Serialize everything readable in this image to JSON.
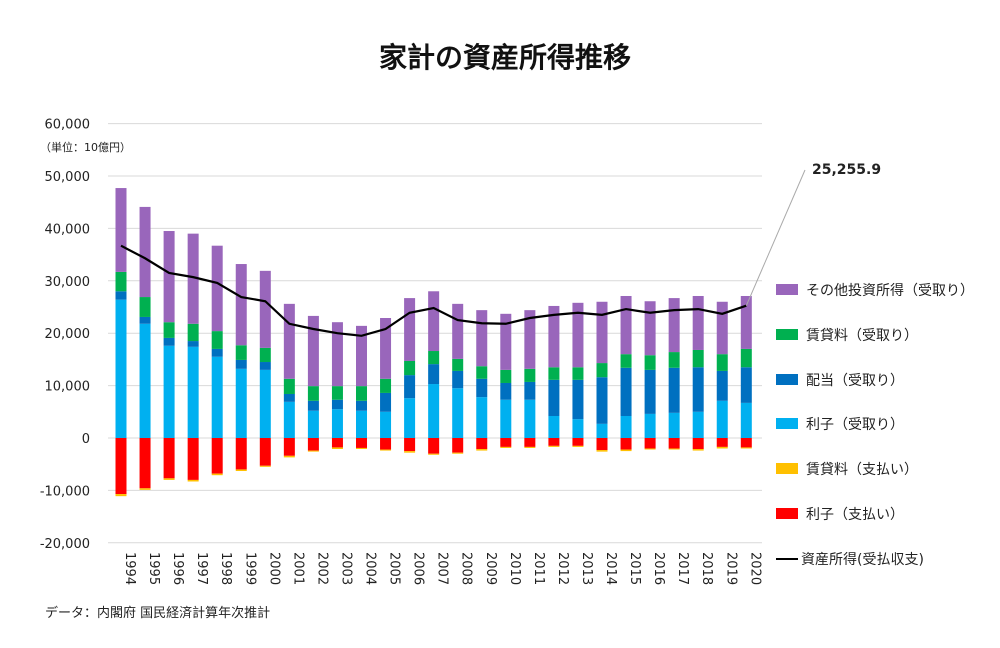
{
  "chart_data": {
    "type": "bar",
    "stacked": true,
    "title": "家計の資産所得推移",
    "unit_note": "（単位：10億円）",
    "source": "データ：内閣府 国民経済計算年次推計",
    "ylim": [
      -20000,
      60000
    ],
    "yticks": [
      "60,000",
      "50,000",
      "40,000",
      "30,000",
      "20,000",
      "10,000",
      "0",
      "-10,000",
      "-20,000"
    ],
    "ytick_values": [
      60000,
      50000,
      40000,
      30000,
      20000,
      10000,
      0,
      -10000,
      -20000
    ],
    "grid": true,
    "legend_position": "right",
    "categories": [
      "1994",
      "1995",
      "1996",
      "1997",
      "1998",
      "1999",
      "2000",
      "2001",
      "2002",
      "2003",
      "2004",
      "2005",
      "2006",
      "2007",
      "2008",
      "2009",
      "2010",
      "2011",
      "2012",
      "2013",
      "2014",
      "2015",
      "2016",
      "2017",
      "2018",
      "2019",
      "2020"
    ],
    "series": [
      {
        "name": "利子（受取り）",
        "color": "#00B0F0",
        "values": [
          26400,
          21800,
          17600,
          17400,
          15500,
          13200,
          13000,
          6900,
          5200,
          5500,
          5200,
          5000,
          7600,
          10300,
          9500,
          7800,
          7300,
          7300,
          4200,
          3600,
          2700,
          4200,
          4600,
          4800,
          5000,
          7100,
          6700
        ]
      },
      {
        "name": "配当（受取り）",
        "color": "#0070C0",
        "values": [
          1600,
          1300,
          1500,
          1100,
          1500,
          1700,
          1500,
          1500,
          1900,
          1800,
          1900,
          3600,
          4400,
          3800,
          3300,
          3500,
          3200,
          3400,
          6900,
          7500,
          8900,
          9200,
          8400,
          8600,
          8500,
          5700,
          6800
        ]
      },
      {
        "name": "賃貸料（受取り）",
        "color": "#00B050",
        "values": [
          3700,
          3800,
          3000,
          3300,
          3400,
          2800,
          2700,
          2900,
          2800,
          2600,
          2800,
          2700,
          2700,
          2500,
          2300,
          2400,
          2500,
          2500,
          2400,
          2400,
          2700,
          2600,
          2800,
          3000,
          3300,
          3200,
          3500
        ]
      },
      {
        "name": "その他投資所得（受取り）",
        "color": "#9966BB",
        "values": [
          16000,
          17200,
          17400,
          17200,
          16300,
          15500,
          14700,
          14300,
          13400,
          12200,
          11500,
          11600,
          12000,
          11400,
          10500,
          10700,
          10700,
          11200,
          11700,
          12300,
          11700,
          11100,
          10300,
          10300,
          10300,
          10000,
          10100
        ]
      },
      {
        "name": "賃貸料（支払い）",
        "color": "#FFC000",
        "values": [
          -400,
          -300,
          -300,
          -300,
          -300,
          -300,
          -200,
          -300,
          -200,
          -300,
          -200,
          -200,
          -300,
          -200,
          -200,
          -300,
          -200,
          -200,
          -200,
          -200,
          -300,
          -300,
          -200,
          -200,
          -300,
          -300,
          -200
        ]
      },
      {
        "name": "利子（支払い）",
        "color": "#FF0000",
        "values": [
          -10700,
          -9600,
          -7700,
          -8000,
          -6800,
          -6000,
          -5300,
          -3400,
          -2400,
          -1800,
          -1900,
          -2200,
          -2500,
          -3000,
          -2800,
          -2100,
          -1700,
          -1700,
          -1500,
          -1500,
          -2300,
          -2200,
          -2000,
          -2000,
          -2100,
          -1700,
          -1800
        ]
      }
    ],
    "line": {
      "name": "資産所得(受払収支)",
      "color": "#000000",
      "values": [
        36700,
        34300,
        31500,
        30700,
        29600,
        26900,
        26100,
        21800,
        20800,
        20000,
        19500,
        20800,
        23900,
        24800,
        22500,
        21900,
        21800,
        22900,
        23500,
        23900,
        23500,
        24600,
        23900,
        24400,
        24600,
        23700,
        25255.9
      ]
    },
    "annotation": {
      "label": "25,255.9",
      "category": "2020"
    }
  }
}
